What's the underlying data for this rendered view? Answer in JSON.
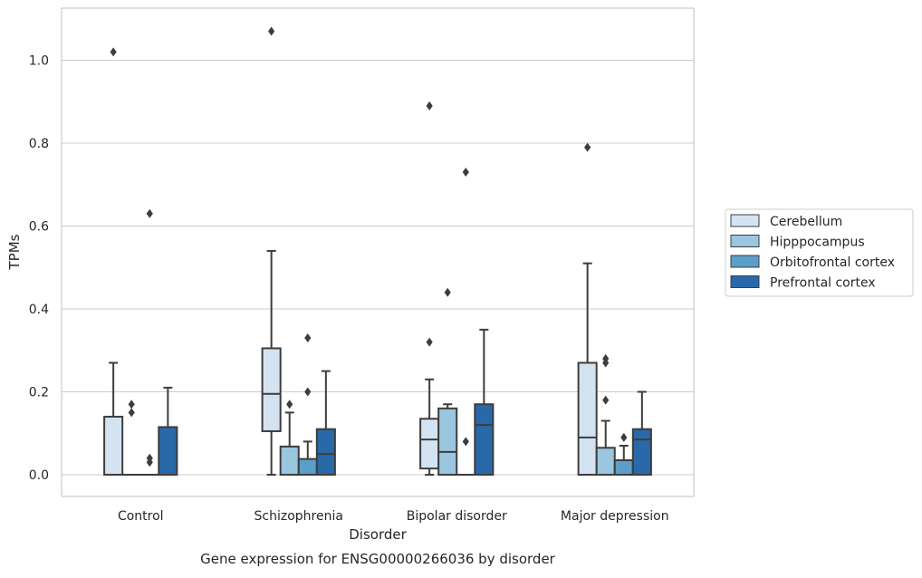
{
  "chart_data": {
    "type": "box",
    "title": "Gene expression for ENSG00000266036 by disorder",
    "xlabel": "Disorder",
    "ylabel": "TPMs",
    "ylim": [
      -0.05,
      1.13
    ],
    "yticks": [
      0.0,
      0.2,
      0.4,
      0.6,
      0.8,
      1.0
    ],
    "ytick_labels": [
      "0.0",
      "0.2",
      "0.4",
      "0.6",
      "0.8",
      "1.0"
    ],
    "grid": "horizontal",
    "legend_position": "right",
    "categories": [
      "Control",
      "Schizophrenia",
      "Bipolar disorder",
      "Major depression"
    ],
    "series": [
      {
        "name": "Cerebellum",
        "color": "#d3e3f1",
        "boxes": [
          {
            "whislo": 0.0,
            "q1": 0.0,
            "med": 0.0,
            "q3": 0.14,
            "whishi": 0.27,
            "fliers": [
              1.02
            ]
          },
          {
            "whislo": 0.0,
            "q1": 0.105,
            "med": 0.195,
            "q3": 0.305,
            "whishi": 0.54,
            "fliers": [
              1.07
            ]
          },
          {
            "whislo": 0.0,
            "q1": 0.015,
            "med": 0.085,
            "q3": 0.135,
            "whishi": 0.23,
            "fliers": [
              0.32,
              0.89
            ]
          },
          {
            "whislo": 0.0,
            "q1": 0.0,
            "med": 0.09,
            "q3": 0.27,
            "whishi": 0.51,
            "fliers": [
              0.79
            ]
          }
        ]
      },
      {
        "name": "Hipppocampus",
        "color": "#9ac6df",
        "boxes": [
          {
            "whislo": 0.0,
            "q1": 0.0,
            "med": 0.0,
            "q3": 0.0,
            "whishi": 0.0,
            "fliers": [
              0.15,
              0.17
            ]
          },
          {
            "whislo": 0.0,
            "q1": 0.0,
            "med": 0.0,
            "q3": 0.068,
            "whishi": 0.15,
            "fliers": [
              0.17
            ]
          },
          {
            "whislo": 0.0,
            "q1": 0.0,
            "med": 0.055,
            "q3": 0.16,
            "whishi": 0.17,
            "fliers": [
              0.44
            ]
          },
          {
            "whislo": 0.0,
            "q1": 0.0,
            "med": 0.0,
            "q3": 0.065,
            "whishi": 0.13,
            "fliers": [
              0.18,
              0.27,
              0.28
            ]
          }
        ]
      },
      {
        "name": "Orbitofrontal cortex",
        "color": "#5b9ec9",
        "boxes": [
          {
            "whislo": 0.0,
            "q1": 0.0,
            "med": 0.0,
            "q3": 0.0,
            "whishi": 0.0,
            "fliers": [
              0.03,
              0.04,
              0.63
            ]
          },
          {
            "whislo": 0.0,
            "q1": 0.0,
            "med": 0.0,
            "q3": 0.038,
            "whishi": 0.08,
            "fliers": [
              0.2,
              0.33
            ]
          },
          {
            "whislo": 0.0,
            "q1": 0.0,
            "med": 0.0,
            "q3": 0.0,
            "whishi": 0.0,
            "fliers": [
              0.08,
              0.73
            ]
          },
          {
            "whislo": 0.0,
            "q1": 0.0,
            "med": 0.0,
            "q3": 0.035,
            "whishi": 0.07,
            "fliers": [
              0.09
            ]
          }
        ]
      },
      {
        "name": "Prefrontal cortex",
        "color": "#2969a9",
        "boxes": [
          {
            "whislo": 0.0,
            "q1": 0.0,
            "med": 0.0,
            "q3": 0.115,
            "whishi": 0.21,
            "fliers": []
          },
          {
            "whislo": 0.0,
            "q1": 0.0,
            "med": 0.05,
            "q3": 0.11,
            "whishi": 0.25,
            "fliers": []
          },
          {
            "whislo": 0.0,
            "q1": 0.0,
            "med": 0.12,
            "q3": 0.17,
            "whishi": 0.35,
            "fliers": []
          },
          {
            "whislo": 0.0,
            "q1": 0.0,
            "med": 0.085,
            "q3": 0.11,
            "whishi": 0.2,
            "fliers": []
          }
        ]
      }
    ]
  }
}
